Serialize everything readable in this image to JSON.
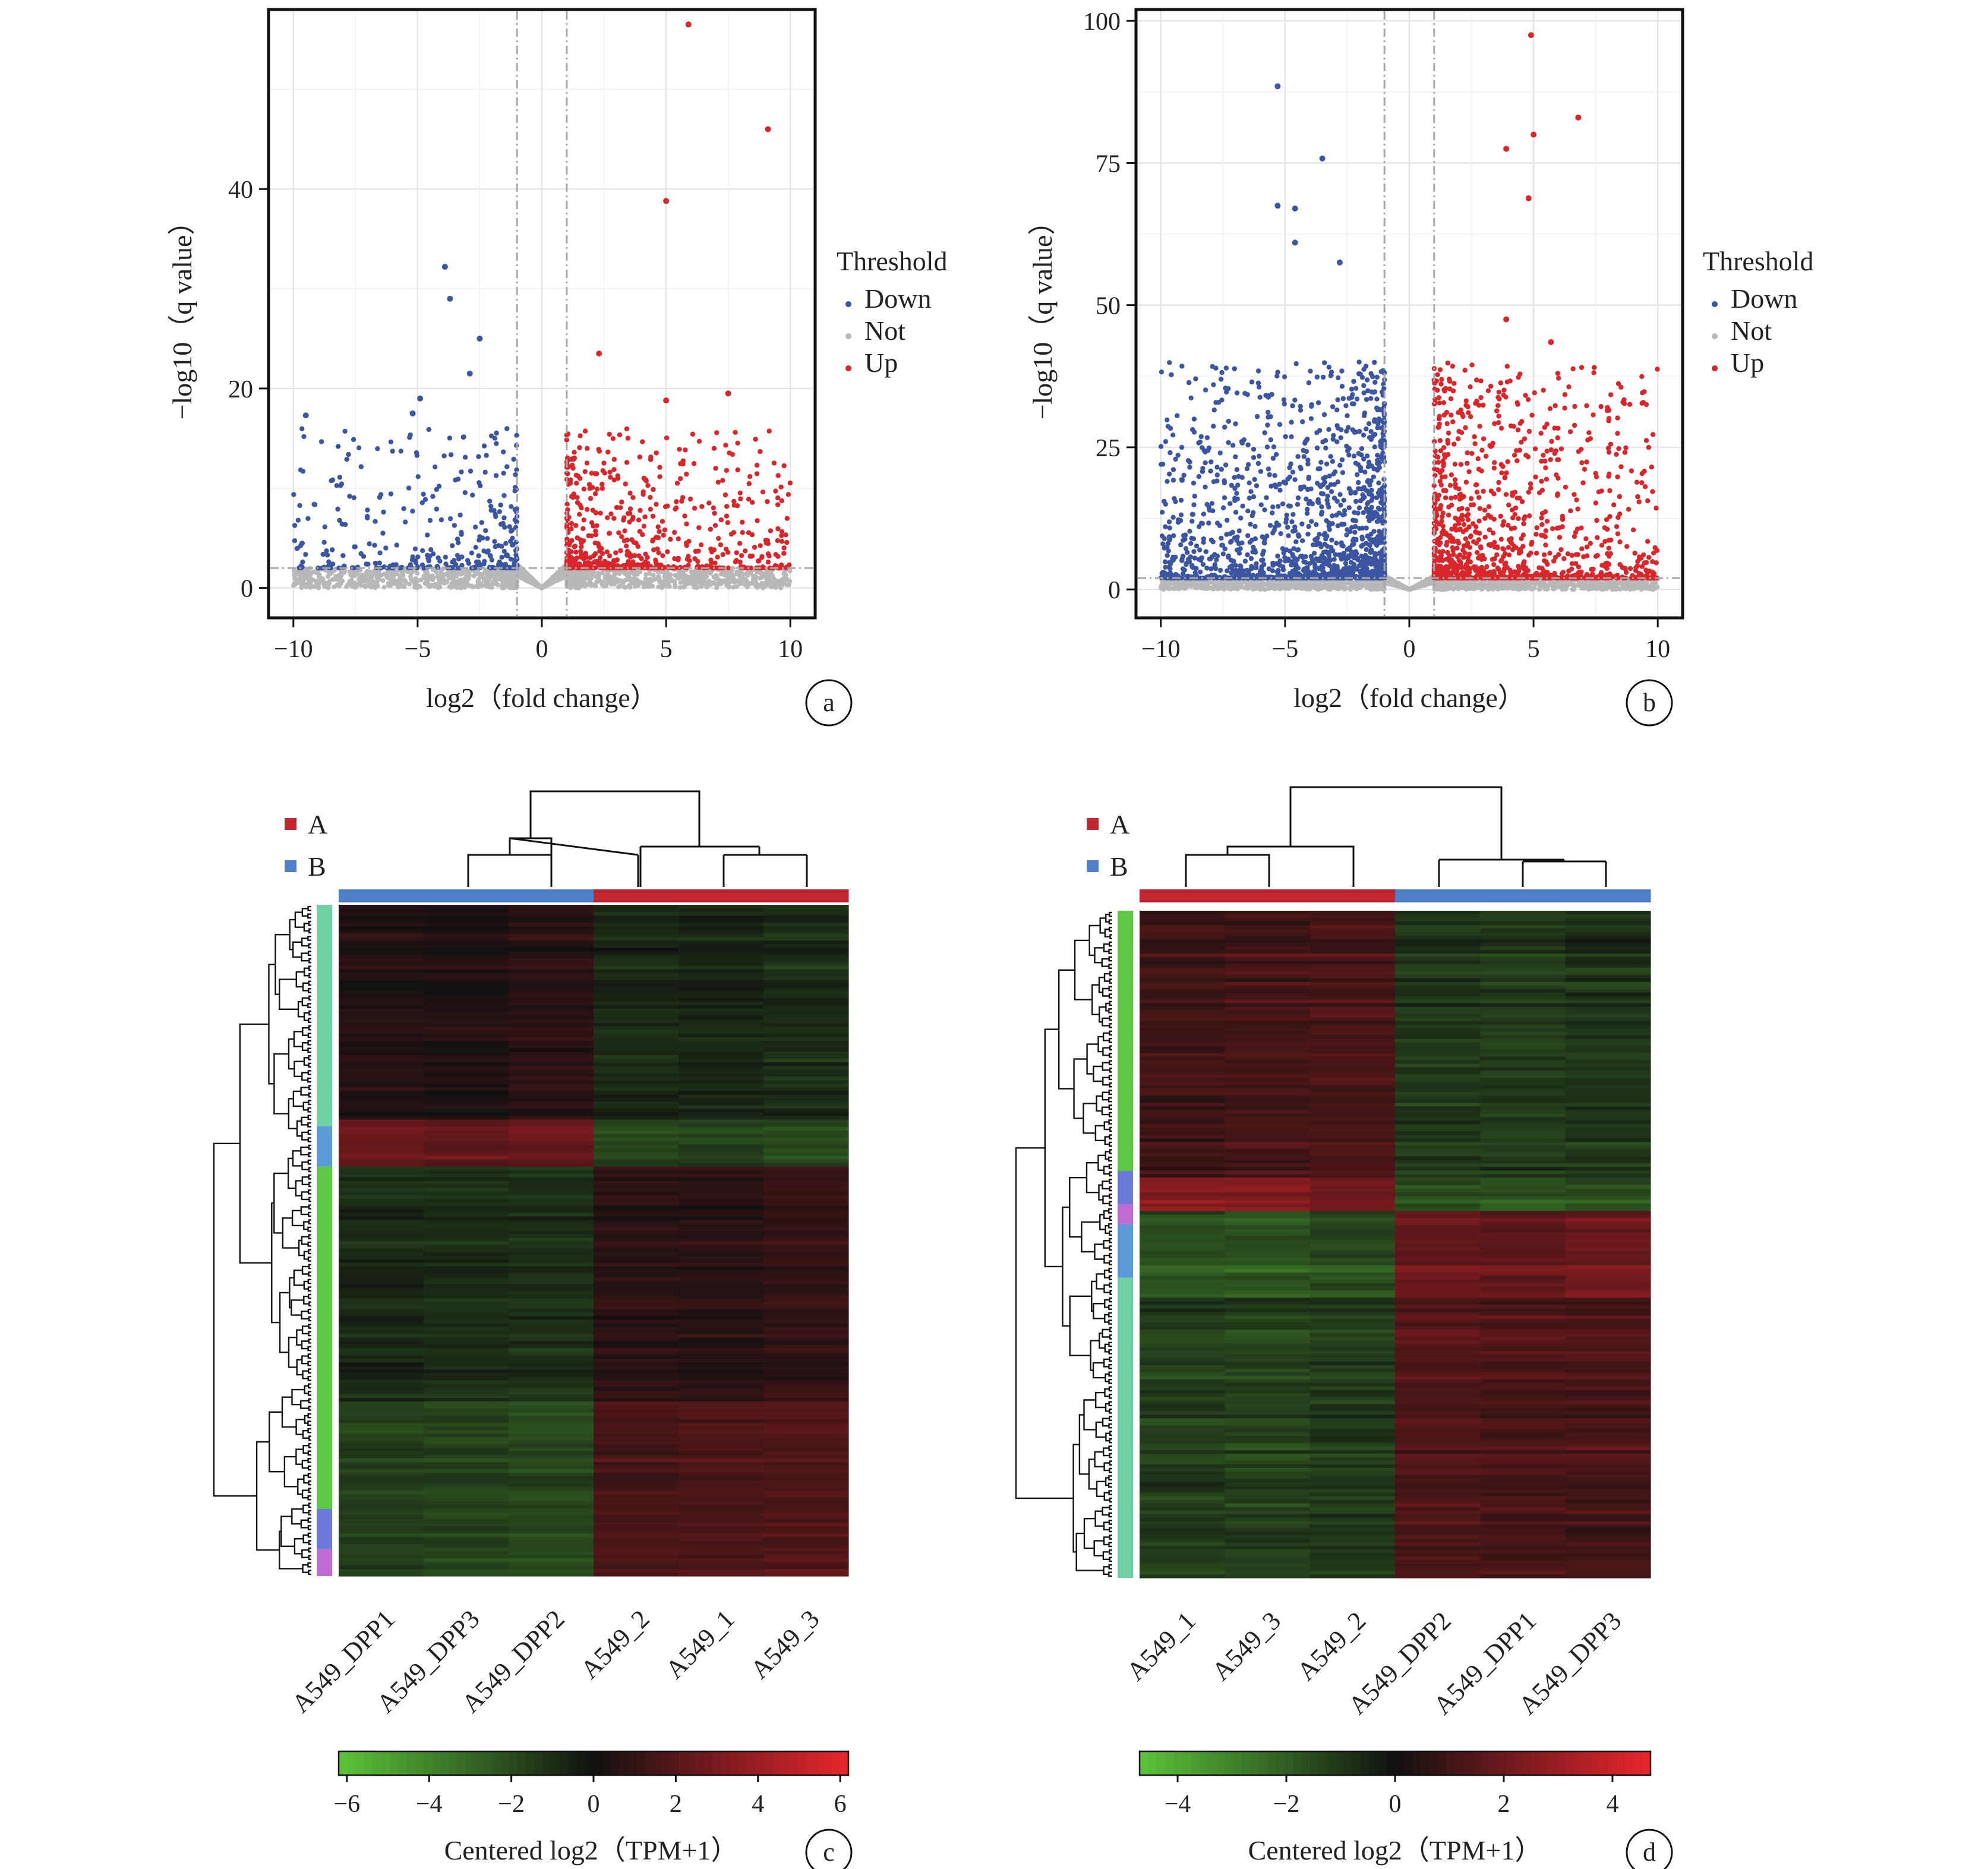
{
  "colors": {
    "down": "#3b55a0",
    "not": "#b8b8b8",
    "up": "#d8262a",
    "group_A": "#c0262e",
    "group_B": "#4f7fc9",
    "heat_low": "#5cc43a",
    "heat_mid": "#101010",
    "heat_high": "#e8262d"
  },
  "panels": {
    "a": {
      "label": "a"
    },
    "b": {
      "label": "b"
    },
    "c": {
      "label": "c"
    },
    "d": {
      "label": "d"
    }
  },
  "chart_data": [
    {
      "id": "a",
      "type": "scatter",
      "xlabel": "log2（fold change）",
      "ylabel": "−log10（q value）",
      "xlim": [
        -11,
        11
      ],
      "ylim": [
        -3,
        58
      ],
      "x_ticks": [
        "−10",
        "−5",
        "0",
        "5",
        "10"
      ],
      "x_tick_values": [
        -10,
        -5,
        0,
        5,
        10
      ],
      "y_ticks": [
        "0",
        "20",
        "40"
      ],
      "y_tick_values": [
        0,
        20,
        40
      ],
      "grid": true,
      "thresholds": {
        "log2fc": [
          -1,
          1
        ],
        "neg_log10_q": 2
      },
      "legend": {
        "title": "Threshold",
        "entries": [
          "Down",
          "Not",
          "Up"
        ],
        "placement": "right"
      },
      "labeled_points": [
        {
          "x": 5.9,
          "y": 56.5,
          "group": "Up"
        },
        {
          "x": 9.1,
          "y": 46.0,
          "group": "Up"
        },
        {
          "x": 5.0,
          "y": 38.8,
          "group": "Up"
        },
        {
          "x": 2.3,
          "y": 23.5,
          "group": "Up"
        },
        {
          "x": 7.5,
          "y": 19.5,
          "group": "Up"
        },
        {
          "x": 5.0,
          "y": 18.8,
          "group": "Up"
        },
        {
          "x": -3.9,
          "y": 32.2,
          "group": "Down"
        },
        {
          "x": -3.7,
          "y": 29.0,
          "group": "Down"
        },
        {
          "x": -2.5,
          "y": 25.0,
          "group": "Down"
        },
        {
          "x": -2.9,
          "y": 21.5,
          "group": "Down"
        },
        {
          "x": -4.9,
          "y": 19.0,
          "group": "Down"
        },
        {
          "x": -9.5,
          "y": 17.3,
          "group": "Down"
        },
        {
          "x": -5.2,
          "y": 17.5,
          "group": "Down"
        }
      ],
      "bulk_counts": {
        "Down": 340,
        "Not": 2600,
        "Up": 620
      },
      "down_x_range": [
        -10,
        -1
      ],
      "up_x_range": [
        1,
        10
      ]
    },
    {
      "id": "b",
      "type": "scatter",
      "xlabel": "log2（fold change）",
      "ylabel": "−log10（q value）",
      "xlim": [
        -11,
        11
      ],
      "ylim": [
        -5,
        102
      ],
      "x_ticks": [
        "−10",
        "−5",
        "0",
        "5",
        "10"
      ],
      "x_tick_values": [
        -10,
        -5,
        0,
        5,
        10
      ],
      "y_ticks": [
        "0",
        "25",
        "50",
        "75",
        "100"
      ],
      "y_tick_values": [
        0,
        25,
        50,
        75,
        100
      ],
      "grid": true,
      "thresholds": {
        "log2fc": [
          -1,
          1
        ],
        "neg_log10_q": 2
      },
      "legend": {
        "title": "Threshold",
        "entries": [
          "Down",
          "Not",
          "Up"
        ],
        "placement": "right"
      },
      "labeled_points": [
        {
          "x": 4.9,
          "y": 97.5,
          "group": "Up"
        },
        {
          "x": 6.8,
          "y": 83.0,
          "group": "Up"
        },
        {
          "x": 5.0,
          "y": 80.0,
          "group": "Up"
        },
        {
          "x": 3.9,
          "y": 77.5,
          "group": "Up"
        },
        {
          "x": 4.8,
          "y": 68.8,
          "group": "Up"
        },
        {
          "x": 3.9,
          "y": 47.5,
          "group": "Up"
        },
        {
          "x": 5.7,
          "y": 43.5,
          "group": "Up"
        },
        {
          "x": -5.3,
          "y": 88.5,
          "group": "Down"
        },
        {
          "x": -3.5,
          "y": 75.8,
          "group": "Down"
        },
        {
          "x": -5.3,
          "y": 67.5,
          "group": "Down"
        },
        {
          "x": -4.6,
          "y": 67.0,
          "group": "Down"
        },
        {
          "x": -4.6,
          "y": 61.0,
          "group": "Down"
        },
        {
          "x": -2.8,
          "y": 57.5,
          "group": "Down"
        }
      ],
      "bulk_counts": {
        "Down": 1500,
        "Not": 3000,
        "Up": 1100
      },
      "down_x_range": [
        -10,
        -1
      ],
      "up_x_range": [
        1,
        10
      ]
    },
    {
      "id": "c",
      "type": "heatmap",
      "columns": [
        "A549_DPP1",
        "A549_DPP3",
        "A549_DPP2",
        "A549_2",
        "A549_1",
        "A549_3"
      ],
      "column_groups": [
        "B",
        "B",
        "B",
        "A",
        "A",
        "A"
      ],
      "group_legend": [
        "A",
        "B"
      ],
      "colorbar": {
        "label": "Centered log2（TPM+1）",
        "min": -6.2,
        "max": 6.2,
        "ticks": [
          "−6",
          "−4",
          "−2",
          "0",
          "2",
          "4",
          "6"
        ],
        "tick_values": [
          -6,
          -4,
          -2,
          0,
          2,
          4,
          6
        ]
      },
      "row_blocks": [
        {
          "fraction": 0.32,
          "values": [
            0.6,
            0.5,
            0.8,
            -0.9,
            -0.8,
            -1.0
          ]
        },
        {
          "fraction": 0.07,
          "values": [
            2.6,
            2.2,
            2.4,
            -1.8,
            -1.6,
            -1.9
          ]
        },
        {
          "fraction": 0.35,
          "values": [
            -0.8,
            -0.9,
            -1.0,
            0.7,
            0.6,
            0.9
          ]
        },
        {
          "fraction": 0.26,
          "values": [
            -1.6,
            -1.7,
            -1.9,
            1.6,
            1.7,
            1.8
          ]
        }
      ],
      "row_annotation": [
        "#6fd1a3",
        "#5b9ad6",
        "#5cc845",
        "#6b7ad8",
        "#c06bd2"
      ]
    },
    {
      "id": "d",
      "type": "heatmap",
      "columns": [
        "A549_1",
        "A549_3",
        "A549_2",
        "A549_DPP2",
        "A549_DPP1",
        "A549_DPP3"
      ],
      "column_groups": [
        "A",
        "A",
        "A",
        "B",
        "B",
        "B"
      ],
      "group_legend": [
        "A",
        "B"
      ],
      "colorbar": {
        "label": "Centered log2（TPM+1）",
        "min": -4.7,
        "max": 4.7,
        "ticks": [
          "−4",
          "−2",
          "0",
          "2",
          "4"
        ],
        "tick_values": [
          -4,
          -2,
          0,
          2,
          4
        ]
      },
      "row_blocks": [
        {
          "fraction": 0.4,
          "values": [
            1.0,
            1.1,
            1.2,
            -1.0,
            -1.1,
            -0.9
          ]
        },
        {
          "fraction": 0.05,
          "values": [
            2.6,
            2.4,
            2.2,
            -1.6,
            -1.8,
            -1.7
          ]
        },
        {
          "fraction": 0.13,
          "values": [
            -1.8,
            -1.9,
            -1.6,
            2.0,
            1.8,
            2.1
          ]
        },
        {
          "fraction": 0.42,
          "values": [
            -1.1,
            -1.2,
            -1.0,
            1.3,
            1.2,
            1.1
          ]
        }
      ],
      "row_annotation": [
        "#5cc845",
        "#6b7ad8",
        "#c06bd2",
        "#5b9ad6",
        "#6fd1a3"
      ]
    }
  ]
}
